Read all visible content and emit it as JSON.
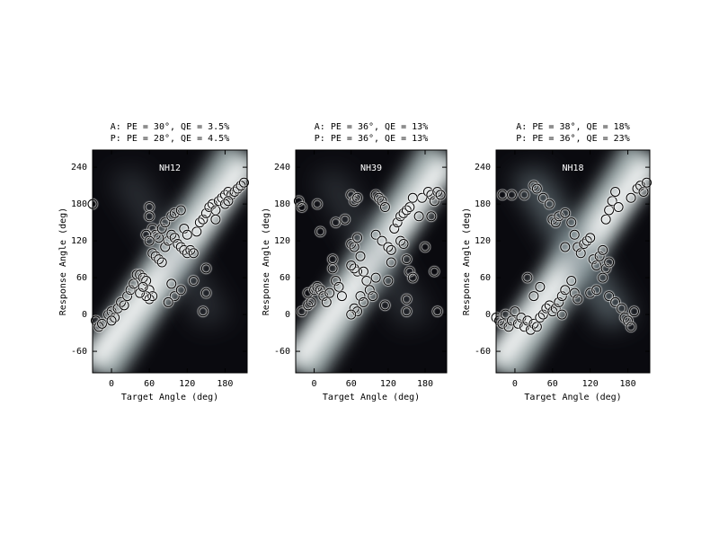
{
  "chart_data": [
    {
      "type": "scatter",
      "title_lines": [
        "A: PE = 30°, QE = 3.5%",
        "P: PE = 28°, QE = 4.5%"
      ],
      "annotation": "NH12",
      "xlabel": "Target Angle (deg)",
      "ylabel": "Response Angle (deg)",
      "xlim": [
        -30,
        215
      ],
      "ylim": [
        -95,
        268
      ],
      "xticks": [
        0,
        60,
        120,
        180
      ],
      "yticks": [
        -60,
        0,
        60,
        120,
        180,
        240
      ],
      "marker_color": "#000000",
      "x": [
        -30,
        -25,
        -20,
        -15,
        -5,
        0,
        5,
        0,
        10,
        15,
        20,
        25,
        30,
        35,
        40,
        45,
        50,
        55,
        60,
        60,
        65,
        55,
        45,
        50,
        65,
        70,
        75,
        80,
        85,
        90,
        95,
        100,
        105,
        110,
        115,
        120,
        125,
        130,
        135,
        140,
        145,
        150,
        155,
        160,
        165,
        170,
        175,
        180,
        185,
        190,
        195,
        200,
        205,
        210,
        180,
        185,
        60,
        60,
        65,
        70,
        75,
        55,
        60,
        80,
        85,
        95,
        100,
        110,
        115,
        120,
        95,
        100,
        90,
        110,
        130,
        145,
        150,
        150,
        165
      ],
      "y": [
        180,
        -10,
        -20,
        -15,
        0,
        5,
        -5,
        -10,
        10,
        20,
        15,
        30,
        40,
        50,
        65,
        65,
        60,
        55,
        40,
        25,
        30,
        30,
        35,
        45,
        100,
        95,
        90,
        85,
        110,
        120,
        130,
        125,
        115,
        110,
        105,
        100,
        105,
        100,
        135,
        150,
        155,
        165,
        175,
        180,
        170,
        185,
        190,
        195,
        200,
        195,
        200,
        205,
        210,
        215,
        180,
        185,
        175,
        160,
        140,
        130,
        125,
        130,
        120,
        140,
        150,
        160,
        165,
        170,
        140,
        130,
        50,
        30,
        20,
        40,
        55,
        5,
        35,
        75,
        155
      ]
    },
    {
      "type": "scatter",
      "title_lines": [
        "A: PE = 36°, QE = 13%",
        "P: PE = 36°, QE = 13%"
      ],
      "annotation": "NH39",
      "xlabel": "Target Angle (deg)",
      "ylabel": "Response Angle (deg)",
      "xlim": [
        -30,
        215
      ],
      "ylim": [
        -95,
        268
      ],
      "xticks": [
        0,
        60,
        120,
        180
      ],
      "yticks": [
        -60,
        0,
        60,
        120,
        180,
        240
      ],
      "marker_color": "#000000",
      "x": [
        -25,
        -20,
        5,
        10,
        -20,
        -10,
        -5,
        -10,
        0,
        5,
        10,
        15,
        20,
        25,
        30,
        35,
        40,
        45,
        30,
        35,
        50,
        60,
        65,
        70,
        60,
        65,
        70,
        75,
        70,
        65,
        60,
        80,
        85,
        90,
        75,
        80,
        65,
        70,
        60,
        100,
        105,
        110,
        115,
        100,
        110,
        120,
        125,
        130,
        135,
        140,
        145,
        150,
        155,
        140,
        145,
        150,
        155,
        160,
        120,
        125,
        100,
        95,
        150,
        150,
        170,
        175,
        185,
        190,
        195,
        200,
        205,
        200,
        195,
        180,
        190,
        160,
        115
      ],
      "y": [
        185,
        175,
        180,
        135,
        5,
        15,
        20,
        35,
        40,
        45,
        40,
        30,
        20,
        35,
        75,
        55,
        45,
        30,
        90,
        150,
        155,
        195,
        185,
        190,
        115,
        110,
        125,
        95,
        70,
        75,
        80,
        70,
        55,
        40,
        30,
        20,
        10,
        5,
        0,
        195,
        190,
        185,
        175,
        130,
        120,
        110,
        105,
        140,
        150,
        160,
        165,
        170,
        175,
        120,
        115,
        90,
        70,
        60,
        55,
        85,
        60,
        30,
        25,
        5,
        160,
        190,
        200,
        195,
        185,
        200,
        195,
        5,
        70,
        110,
        160,
        190,
        15
      ]
    },
    {
      "type": "scatter",
      "title_lines": [
        "A: PE = 38°, QE = 18%",
        "P: PE = 36°, QE = 23%"
      ],
      "annotation": "NH18",
      "xlabel": "Target Angle (deg)",
      "ylabel": "Response Angle (deg)",
      "xlim": [
        -30,
        215
      ],
      "ylim": [
        -95,
        268
      ],
      "xticks": [
        0,
        60,
        120,
        180
      ],
      "yticks": [
        -60,
        0,
        60,
        120,
        180,
        240
      ],
      "marker_color": "#000000",
      "x": [
        -20,
        -5,
        15,
        30,
        35,
        45,
        55,
        60,
        65,
        70,
        80,
        90,
        95,
        100,
        105,
        110,
        115,
        120,
        125,
        130,
        135,
        140,
        145,
        150,
        145,
        150,
        155,
        160,
        165,
        185,
        195,
        200,
        205,
        210,
        -30,
        -25,
        -20,
        -15,
        -10,
        -5,
        0,
        5,
        10,
        15,
        20,
        25,
        30,
        35,
        40,
        45,
        50,
        55,
        60,
        65,
        70,
        75,
        80,
        90,
        95,
        100,
        120,
        130,
        140,
        150,
        160,
        170,
        175,
        180,
        185,
        190,
        80,
        75,
        30,
        40,
        20
      ],
      "y": [
        195,
        195,
        195,
        210,
        205,
        190,
        180,
        155,
        150,
        160,
        165,
        150,
        130,
        110,
        100,
        115,
        120,
        125,
        90,
        80,
        95,
        105,
        75,
        85,
        155,
        170,
        185,
        200,
        175,
        190,
        205,
        210,
        200,
        215,
        -5,
        -10,
        -15,
        0,
        -20,
        -10,
        5,
        -15,
        -5,
        -20,
        -10,
        -25,
        -15,
        -20,
        -5,
        0,
        10,
        15,
        5,
        10,
        20,
        30,
        40,
        55,
        35,
        25,
        35,
        40,
        60,
        30,
        20,
        10,
        -5,
        -10,
        -20,
        5,
        110,
        0,
        30,
        45,
        60
      ]
    }
  ]
}
